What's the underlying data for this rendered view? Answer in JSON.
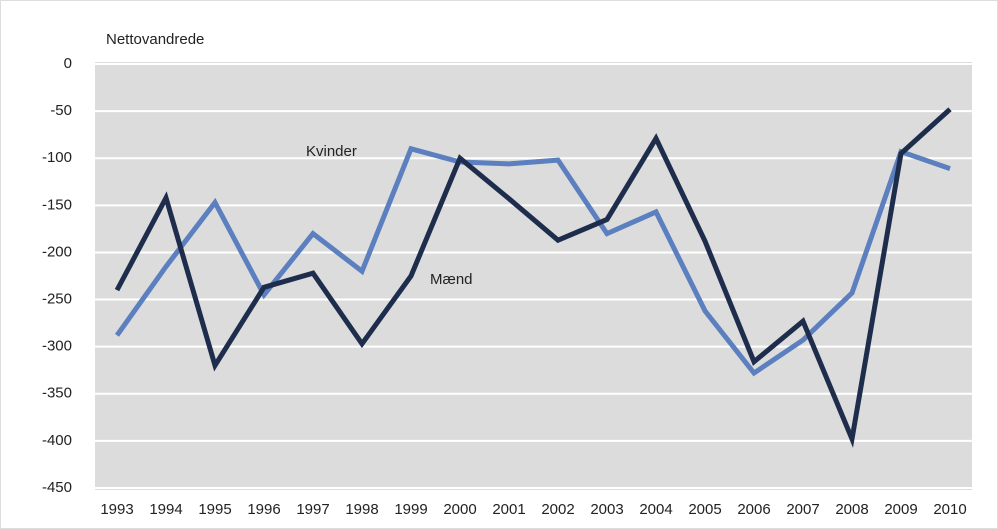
{
  "chart_data": {
    "type": "line",
    "ylabel": "Nettovandrede",
    "categories": [
      "1993",
      "1994",
      "1995",
      "1996",
      "1997",
      "1998",
      "1999",
      "2000",
      "2001",
      "2002",
      "2003",
      "2004",
      "2005",
      "2006",
      "2007",
      "2008",
      "2009",
      "2010"
    ],
    "series": [
      {
        "name": "Kvinder",
        "color": "#5b7fbf",
        "values": [
          -288,
          -215,
          -147,
          -245,
          -180,
          -220,
          -90,
          -104,
          -106,
          -102,
          -180,
          -157,
          -262,
          -328,
          -293,
          -243,
          -93,
          -111
        ]
      },
      {
        "name": "Mænd",
        "color": "#1f2d4d",
        "values": [
          -240,
          -142,
          -320,
          -237,
          -222,
          -297,
          -225,
          -100,
          -143,
          -187,
          -165,
          -79,
          -188,
          -316,
          -273,
          -398,
          -95,
          -48
        ]
      }
    ],
    "ylim": [
      -450,
      0
    ],
    "yticks": [
      0,
      -50,
      -100,
      -150,
      -200,
      -250,
      -300,
      -350,
      -400,
      -450
    ],
    "grid": true
  }
}
